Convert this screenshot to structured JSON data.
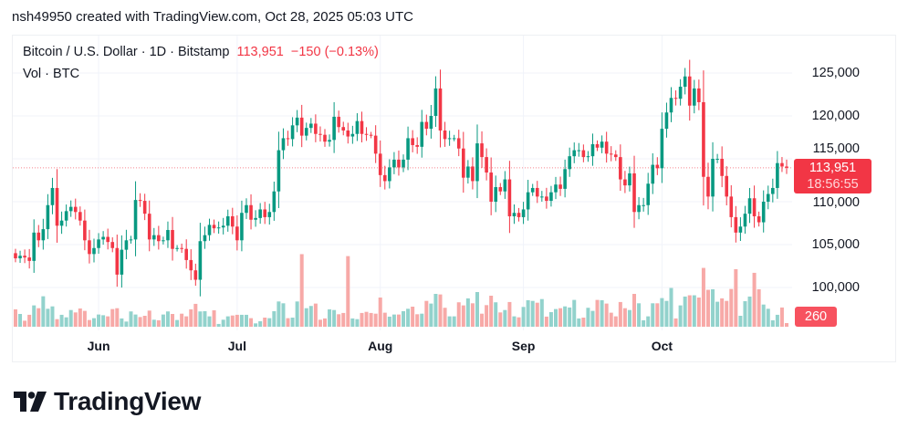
{
  "credit": "nsh49950 created with TradingView.com, Oct 28, 2025 05:03 UTC",
  "legend": {
    "symbol": "Bitcoin / U.S. Dollar · 1D · Bitstamp",
    "last": "113,951",
    "change": "−150 (−0.13%)",
    "volume": "Vol · BTC"
  },
  "price_tag": {
    "price": "113,951",
    "countdown": "18:56:55"
  },
  "volume_tag": "260",
  "logo_text": "TradingView",
  "colors": {
    "up": "#089981",
    "down": "#f23645",
    "vol_up": "#92d2cc",
    "vol_down": "#f7a9a7",
    "grid": "#f0f3fa"
  },
  "chart_data": {
    "type": "candlestick",
    "title": "Bitcoin / U.S. Dollar · 1D · Bitstamp",
    "interval": "1D",
    "y_ticks": [
      "125,000",
      "120,000",
      "115,000",
      "110,000",
      "105,000",
      "100,000"
    ],
    "y_tick_values": [
      125000,
      120000,
      115000,
      110000,
      105000,
      100000
    ],
    "x_ticks": [
      "Jun",
      "Jul",
      "Aug",
      "Sep",
      "Oct"
    ],
    "last_price": 113951,
    "first_open": 104000,
    "close": [
      103400,
      103700,
      103500,
      103100,
      106400,
      105500,
      106800,
      109600,
      111600,
      107200,
      107800,
      108900,
      109400,
      108800,
      107800,
      105500,
      103900,
      104600,
      105600,
      105900,
      105300,
      104600,
      101500,
      104400,
      105500,
      105600,
      110200,
      110100,
      108600,
      105600,
      106100,
      105400,
      105500,
      106700,
      104500,
      104600,
      104500,
      103200,
      102000,
      100900,
      105400,
      106100,
      107300,
      106900,
      107000,
      107200,
      108300,
      107100,
      105500,
      108700,
      109600,
      107900,
      108100,
      109100,
      108200,
      108800,
      111200,
      116000,
      117400,
      117300,
      118900,
      119800,
      117700,
      118600,
      119100,
      117900,
      117800,
      117000,
      117200,
      119900,
      118700,
      118300,
      117600,
      117900,
      119400,
      117900,
      117800,
      117700,
      115600,
      113100,
      112400,
      114000,
      114900,
      114000,
      114900,
      117400,
      116600,
      116400,
      119300,
      118500,
      120000,
      123200,
      118300,
      117300,
      117400,
      117400,
      116200,
      112800,
      114100,
      112400,
      116800,
      115200,
      113400,
      110000,
      111700,
      111200,
      112600,
      108300,
      108700,
      108200,
      109100,
      111100,
      111600,
      110600,
      110600,
      110100,
      111100,
      112000,
      111500,
      113800,
      115300,
      116000,
      116000,
      115200,
      115300,
      116700,
      116300,
      117000,
      115600,
      115500,
      115200,
      112600,
      111900,
      113300,
      108800,
      109600,
      109600,
      112100,
      114300,
      113900,
      118500,
      120400,
      122100,
      122000,
      123400,
      124600,
      121200,
      123200,
      121600,
      112900,
      110600,
      115000,
      115000,
      113000,
      110600,
      108200,
      106400,
      107100,
      108600,
      110400,
      108300,
      107600,
      110000,
      110900,
      111600,
      114500,
      114101,
      113951
    ],
    "volume": [
      1240,
      910,
      430,
      850,
      1520,
      1320,
      2170,
      1280,
      1450,
      540,
      850,
      670,
      1190,
      1020,
      1300,
      1130,
      480,
      610,
      870,
      820,
      740,
      1260,
      1320,
      590,
      370,
      1090,
      870,
      690,
      780,
      1150,
      500,
      460,
      870,
      1090,
      910,
      480,
      930,
      740,
      1240,
      1630,
      1090,
      1110,
      740,
      1170,
      200,
      500,
      740,
      800,
      850,
      850,
      850,
      610,
      240,
      390,
      650,
      610,
      1110,
      1800,
      1670,
      610,
      650,
      1800,
      5170,
      1320,
      1480,
      1650,
      500,
      590,
      1240,
      1190,
      890,
      980,
      5030,
      590,
      540,
      980,
      1060,
      980,
      930,
      2080,
      1000,
      720,
      870,
      870,
      1110,
      1280,
      1430,
      890,
      930,
      1840,
      1650,
      2340,
      2300,
      1350,
      740,
      740,
      1740,
      1520,
      2020,
      1670,
      2470,
      930,
      1540,
      2210,
      1740,
      1020,
      1190,
      1760,
      740,
      670,
      1410,
      1890,
      1840,
      1710,
      1970,
      720,
      1040,
      1260,
      1320,
      1450,
      1370,
      1910,
      590,
      650,
      1350,
      1130,
      1910,
      1890,
      1650,
      1000,
      740,
      1760,
      1320,
      1190,
      2340,
      1670,
      460,
      740,
      1670,
      1670,
      2040,
      1840,
      2760,
      590,
      1520,
      2150,
      2240,
      2240,
      2080,
      4190,
      2630,
      2670,
      1780,
      2020,
      1840,
      2690,
      4100,
      780,
      1820,
      2150,
      3840,
      2670,
      1580,
      1280,
      460,
      850,
      1370,
      260
    ],
    "volume_unit": "BTC",
    "grid": true
  }
}
